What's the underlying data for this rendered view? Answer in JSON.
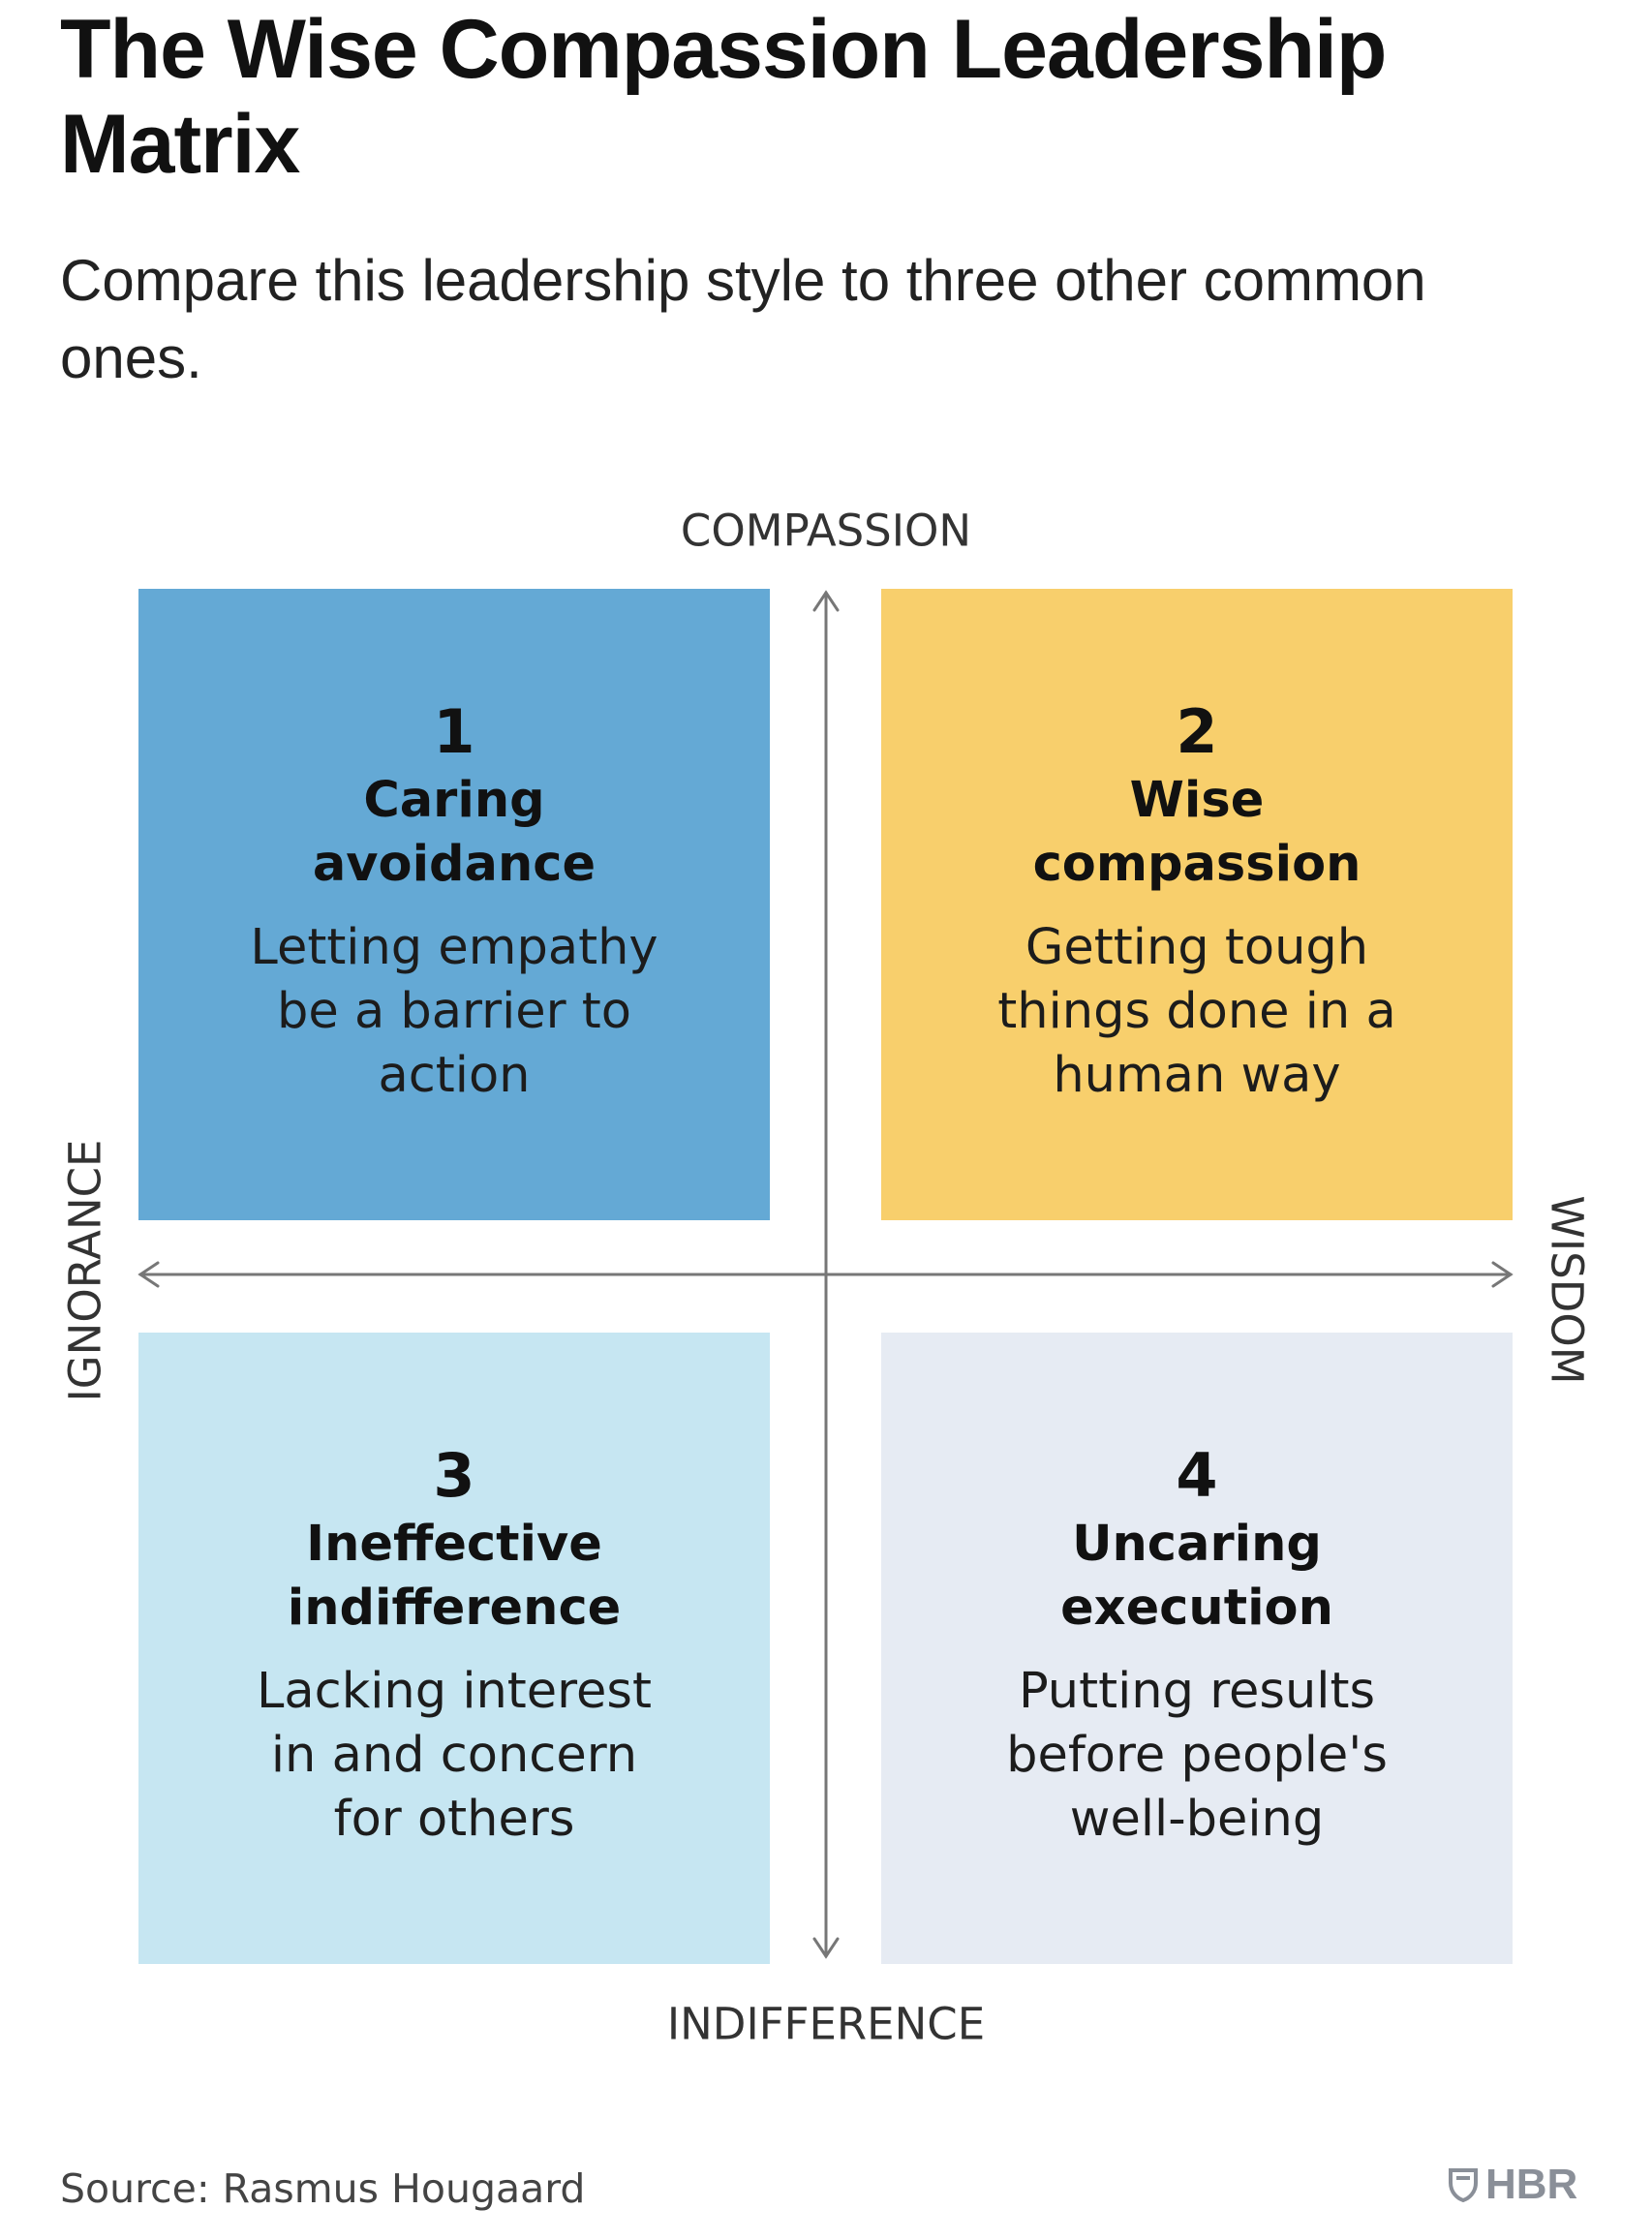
{
  "title": "The Wise Compassion Leadership Matrix",
  "subtitle": "Compare this leadership style to three other common ones.",
  "axes": {
    "top": "COMPASSION",
    "bottom": "INDIFFERENCE",
    "left": "IGNORANCE",
    "right": "WISDOM"
  },
  "quadrants": [
    {
      "number": "1",
      "name": "Caring avoidance",
      "description": "Letting empathy be a barrier to action",
      "color": "#64a9d5"
    },
    {
      "number": "2",
      "name": "Wise compassion",
      "description": "Getting tough things done in a human way",
      "color": "#f8cf6c"
    },
    {
      "number": "3",
      "name": "Ineffective indifference",
      "description": "Lacking interest in and concern for others",
      "color": "#c6e6f2"
    },
    {
      "number": "4",
      "name": "Uncaring execution",
      "description": "Putting results before people's well-being",
      "color": "#e6ebf3"
    }
  ],
  "source": "Source: Rasmus Hougaard",
  "logo": {
    "text": "HBR",
    "icon": "hbr-shield-icon"
  }
}
